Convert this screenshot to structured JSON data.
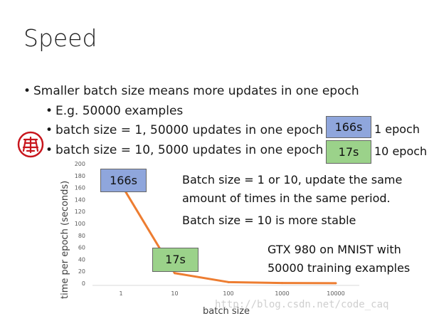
{
  "slide": {
    "title": "Speed",
    "bullets": [
      "Smaller batch size means more updates in one epoch",
      "E.g. 50000 examples",
      "batch size = 1, 50000 updates in one epoch",
      "batch size = 10, 5000 updates in one epoch"
    ],
    "badges": {
      "top_blue": "166s",
      "top_blue_note": "1 epoch",
      "top_green": "17s",
      "top_green_note": "10 epoch",
      "chart_blue": "166s",
      "chart_green": "17s"
    },
    "notes": [
      "Batch size = 1 or 10, update the same",
      "amount of times in the same period.",
      "Batch size = 10 is more stable",
      "GTX 980 on MNIST with",
      "50000 training examples"
    ],
    "watermark": "http://blog.csdn.net/code_caq",
    "colors": {
      "line": "#ed7d31",
      "blue_box": "#8fa6dc",
      "green_box": "#9bd28a",
      "seal": "#c8161d"
    }
  },
  "chart_data": {
    "type": "line",
    "categories": [
      "1",
      "10",
      "100",
      "1000",
      "10000"
    ],
    "series": [
      {
        "values": [
          166,
          17,
          2,
          0.5,
          0.2
        ]
      }
    ],
    "ylabel": "time per epoch (seconds)",
    "xlabel": "batch size",
    "ylim": [
      0,
      200
    ],
    "yticks": [
      "0",
      "20",
      "40",
      "60",
      "80",
      "100",
      "120",
      "140",
      "160",
      "180",
      "200"
    ],
    "grid": false
  }
}
